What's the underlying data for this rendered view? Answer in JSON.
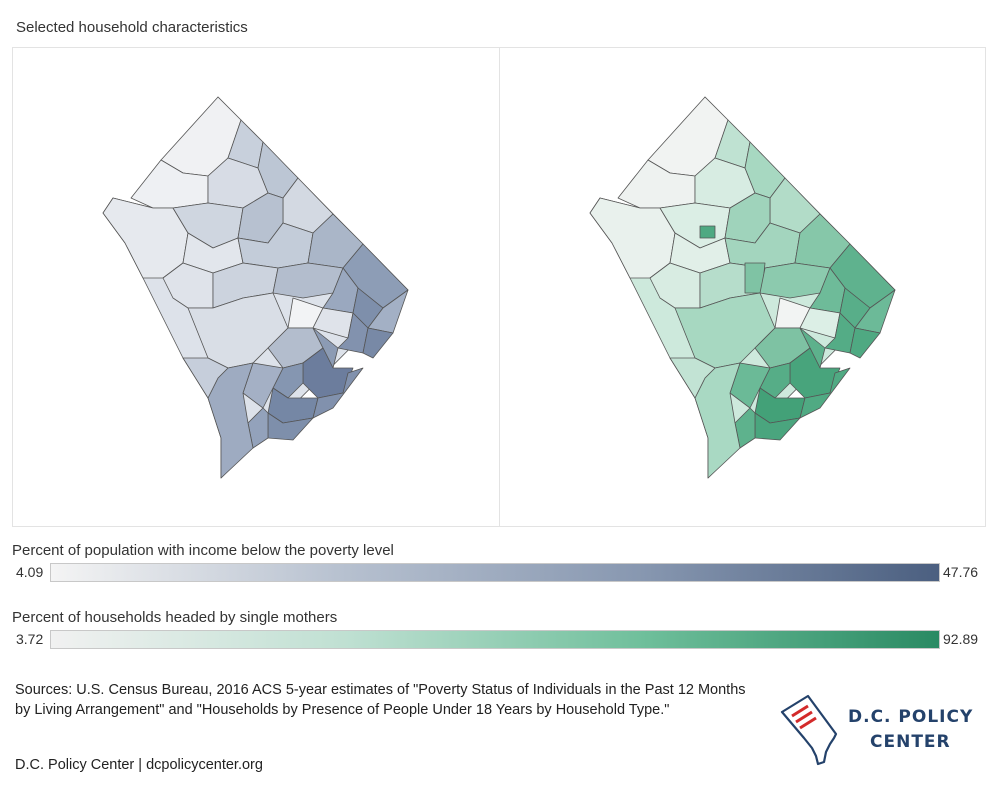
{
  "title": "Selected household characteristics",
  "legends": [
    {
      "title": "Percent of population with income below the poverty level",
      "min": "4.09",
      "max": "47.76",
      "color_low": "#f4f4f4",
      "color_high": "#4b5f80"
    },
    {
      "title": "Percent of households headed by single mothers",
      "min": "3.72",
      "max": "92.89",
      "color_low": "#f1f1f1",
      "color_high": "#2a8a63"
    }
  ],
  "sources": "Sources: U.S. Census Bureau, 2016 ACS 5-year estimates of \"Poverty Status of Individuals in the Past 12 Months by Living Arrangement\" and \"Households by Presence of People Under 18 Years by Household Type.\"",
  "credit": "D.C. Policy Center | dcpolicycenter.org",
  "logo": {
    "line1": "D.C. POLICY",
    "line2": "CENTER",
    "icon": "dc-flag-document-icon"
  }
}
